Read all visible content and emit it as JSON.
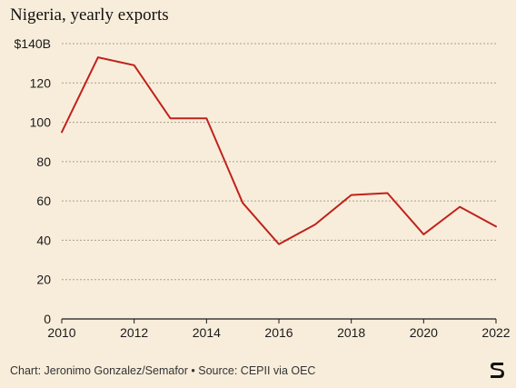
{
  "chart_data": {
    "type": "line",
    "title": "Nigeria, yearly exports",
    "x": [
      2010,
      2011,
      2012,
      2013,
      2014,
      2015,
      2016,
      2017,
      2018,
      2019,
      2020,
      2021,
      2022
    ],
    "series": [
      {
        "values": [
          95,
          133,
          129,
          102,
          102,
          59,
          38,
          48,
          63,
          64,
          43,
          57,
          47
        ]
      }
    ],
    "xticks": [
      "2010",
      "2012",
      "2014",
      "2016",
      "2018",
      "2020",
      "2022"
    ],
    "yticks": [
      "0",
      "20",
      "40",
      "60",
      "80",
      "100",
      "120",
      "$140B"
    ],
    "xlim": [
      2010,
      2022
    ],
    "ylim": [
      0,
      140
    ],
    "xlabel": "",
    "ylabel": "",
    "grid": true,
    "line_color": "#c0221b"
  },
  "footer": "Chart: Jeronimo Gonzalez/Semafor • Source: CEPII via OEC",
  "logo_icon": "semafor-logo-icon"
}
